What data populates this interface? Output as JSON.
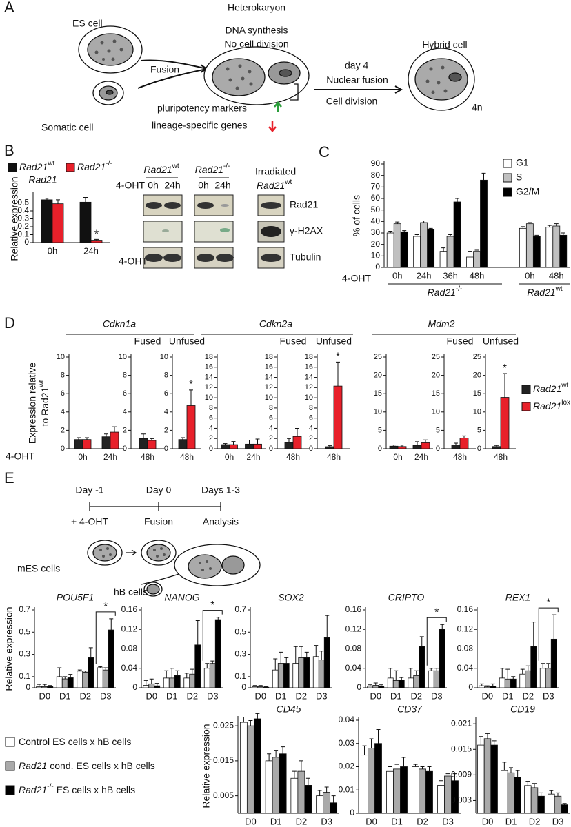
{
  "panel_labels": {
    "a": "A",
    "b": "B",
    "c": "C",
    "d": "D",
    "e": "E"
  },
  "panel_a": {
    "es_cell": "ES cell",
    "somatic_cell": "Somatic cell",
    "fusion": "Fusion",
    "heterokaryon": "Heterokaryon",
    "dna_synthesis": "DNA synthesis",
    "no_division": "No cell division",
    "pluripotency": "pluripotency markers",
    "lineage": "lineage-specific genes",
    "day4": "day 4",
    "nuclear_fusion": "Nuclear fusion",
    "cell_division": "Cell division",
    "hybrid_cell": "Hybrid cell",
    "ploidy": "4n"
  },
  "panel_b": {
    "legend": [
      {
        "base": "Rad21",
        "sup": "wt",
        "color": "#111111"
      },
      {
        "base": "Rad21",
        "sup": "-/-",
        "color": "#e8202a"
      }
    ],
    "blot": {
      "columns": [
        {
          "base": "Rad21",
          "sup": "wt"
        },
        {
          "base": "Rad21",
          "sup": "-/-"
        }
      ],
      "irradiated": "Irradiated",
      "irradiated_line": {
        "base": "Rad21",
        "sup": "wt"
      },
      "treatment": "4-OHT",
      "times": [
        "0h",
        "24h",
        "0h",
        "24h"
      ],
      "rows": [
        "Rad21",
        "γ-H2AX",
        "Tubulin"
      ]
    }
  },
  "panel_c": {
    "groups": [
      {
        "base": "Rad21",
        "sup": "-/-"
      },
      {
        "base": "Rad21",
        "sup": "wt"
      }
    ]
  },
  "panel_d": {
    "genes": [
      "Cdkn1a",
      "Cdkn2a",
      "Mdm2"
    ],
    "ylabel": {
      "line1": "Expression relative",
      "line2": "to Rad21",
      "sup": "wt"
    },
    "treatment": "4-OHT",
    "legend": [
      {
        "base": "Rad21",
        "sup": "wt",
        "color": "#222222"
      },
      {
        "base": "Rad21",
        "sup": "lox",
        "color": "#e8202a"
      }
    ]
  },
  "panel_e": {
    "timeline": {
      "days": [
        "Day -1",
        "Day 0",
        "Days 1-3"
      ],
      "steps": [
        "+ 4-OHT",
        "Fusion",
        "Analysis"
      ]
    },
    "mes": "mES cells",
    "hb": "hB cells",
    "legend": [
      {
        "text": "Control ES cells x hB cells",
        "color": "#ffffff"
      },
      {
        "italic": "Rad21",
        "text": "cond. ES cells x hB cells",
        "color": "#aaaaaa"
      },
      {
        "italic": "Rad21",
        "sup": "-/-",
        "text": "ES cells x hB cells",
        "color": "#000000"
      }
    ]
  },
  "chart_data": [
    {
      "type": "bar",
      "title": "Rad21",
      "ylabel": "Relative expression",
      "xlabel": "4-OHT",
      "categories": [
        "0h",
        "24h"
      ],
      "series": [
        {
          "color": "#111111",
          "values": [
            0.54,
            0.51
          ],
          "errors": [
            0.02,
            0.06
          ]
        },
        {
          "color": "#e8202a",
          "values": [
            0.49,
            0.03
          ],
          "errors": [
            0.05,
            0.01
          ]
        }
      ],
      "ylim": [
        0,
        0.6
      ],
      "yticks": [
        0,
        0.1,
        0.2,
        0.3,
        0.4,
        0.5
      ],
      "annotations": [
        "*"
      ]
    },
    {
      "type": "bar",
      "ylabel": "% of cells",
      "xlabel": "4-OHT",
      "categories": [
        "0h",
        "24h",
        "36h",
        "48h",
        null,
        "0h",
        "48h"
      ],
      "series": [
        {
          "name": "G1",
          "color": "#ffffff",
          "values": [
            30,
            27,
            14,
            9,
            null,
            34,
            35
          ],
          "errors": [
            1.5,
            1.5,
            3,
            5,
            null,
            1.5,
            1.5
          ]
        },
        {
          "name": "S",
          "color": "#c0c0c0",
          "values": [
            38,
            39,
            27,
            14,
            null,
            38,
            36
          ],
          "errors": [
            1.5,
            1.5,
            1.5,
            1,
            null,
            1,
            2
          ]
        },
        {
          "name": "G2/M",
          "color": "#000000",
          "values": [
            31,
            33,
            57,
            76,
            null,
            27,
            28
          ],
          "errors": [
            1,
            1,
            3,
            6,
            null,
            1,
            2
          ]
        }
      ],
      "ylim": [
        0,
        90
      ],
      "yticks": [
        0,
        10,
        20,
        30,
        40,
        50,
        60,
        70,
        80,
        90
      ]
    },
    {
      "type": "bar",
      "categories": [
        "0h",
        "24h"
      ],
      "series": [
        {
          "color": "#222222",
          "values": [
            1.0,
            1.3
          ],
          "errors": [
            0.2,
            0.3
          ]
        },
        {
          "color": "#e8202a",
          "values": [
            1.0,
            1.8
          ],
          "errors": [
            0.2,
            0.6
          ]
        }
      ],
      "ylim": [
        0,
        10
      ],
      "yticks": [
        0,
        2,
        4,
        6,
        8,
        10
      ]
    },
    {
      "type": "bar",
      "title": "Fused",
      "categories": [
        "48h"
      ],
      "series": [
        {
          "color": "#222222",
          "values": [
            1.1
          ],
          "errors": [
            0.5
          ]
        },
        {
          "color": "#e8202a",
          "values": [
            0.9
          ],
          "errors": [
            0.2
          ]
        }
      ],
      "ylim": [
        0,
        10
      ],
      "yticks": [
        0,
        2,
        4,
        6,
        8,
        10
      ]
    },
    {
      "type": "bar",
      "title": "Unfused",
      "categories": [
        "48h"
      ],
      "series": [
        {
          "color": "#222222",
          "values": [
            1.0
          ],
          "errors": [
            0.2
          ]
        },
        {
          "color": "#e8202a",
          "values": [
            4.7
          ],
          "errors": [
            1.7
          ]
        }
      ],
      "ylim": [
        0,
        10
      ],
      "yticks": [
        0,
        2,
        4,
        6,
        8,
        10
      ],
      "annotations": [
        "*"
      ]
    },
    {
      "type": "bar",
      "categories": [
        "0h",
        "24h"
      ],
      "series": [
        {
          "color": "#222222",
          "values": [
            0.8,
            0.9
          ],
          "errors": [
            0.2,
            0.8
          ]
        },
        {
          "color": "#e8202a",
          "values": [
            0.8,
            0.9
          ],
          "errors": [
            0.6,
            1.0
          ]
        }
      ],
      "ylim": [
        0,
        18
      ],
      "yticks": [
        0,
        2,
        4,
        6,
        8,
        10,
        12,
        14,
        16,
        18
      ]
    },
    {
      "type": "bar",
      "title": "Fused",
      "categories": [
        "48h"
      ],
      "series": [
        {
          "color": "#222222",
          "values": [
            1.2
          ],
          "errors": [
            0.8
          ]
        },
        {
          "color": "#e8202a",
          "values": [
            2.4
          ],
          "errors": [
            1.6
          ]
        }
      ],
      "ylim": [
        0,
        18
      ],
      "yticks": [
        0,
        2,
        4,
        6,
        8,
        10,
        12,
        14,
        16,
        18
      ]
    },
    {
      "type": "bar",
      "title": "Unfused",
      "categories": [
        "48h"
      ],
      "series": [
        {
          "color": "#222222",
          "values": [
            0.4
          ],
          "errors": [
            0.2
          ]
        },
        {
          "color": "#e8202a",
          "values": [
            12.3
          ],
          "errors": [
            4.7
          ]
        }
      ],
      "ylim": [
        0,
        18
      ],
      "yticks": [
        0,
        2,
        4,
        6,
        8,
        10,
        12,
        14,
        16,
        18
      ],
      "annotations": [
        "*"
      ]
    },
    {
      "type": "bar",
      "categories": [
        "0h",
        "24h"
      ],
      "series": [
        {
          "color": "#222222",
          "values": [
            0.7,
            0.9
          ],
          "errors": [
            0.3,
            1.0
          ]
        },
        {
          "color": "#e8202a",
          "values": [
            0.6,
            1.6
          ],
          "errors": [
            0.4,
            0.8
          ]
        }
      ],
      "ylim": [
        0,
        25
      ],
      "yticks": [
        0,
        5,
        10,
        15,
        20,
        25
      ]
    },
    {
      "type": "bar",
      "title": "Fused",
      "categories": [
        "48h"
      ],
      "series": [
        {
          "color": "#222222",
          "values": [
            1.0
          ],
          "errors": [
            0.5
          ]
        },
        {
          "color": "#e8202a",
          "values": [
            2.9
          ],
          "errors": [
            0.6
          ]
        }
      ],
      "ylim": [
        0,
        25
      ],
      "yticks": [
        0,
        5,
        10,
        15,
        20,
        25
      ]
    },
    {
      "type": "bar",
      "title": "Unfused",
      "categories": [
        "48h"
      ],
      "series": [
        {
          "color": "#222222",
          "values": [
            0.6
          ],
          "errors": [
            0.3
          ]
        },
        {
          "color": "#e8202a",
          "values": [
            14
          ],
          "errors": [
            6.5
          ]
        }
      ],
      "ylim": [
        0,
        25
      ],
      "yticks": [
        0,
        5,
        10,
        15,
        20,
        25
      ],
      "annotations": [
        "*"
      ]
    },
    {
      "type": "bar",
      "title": "POU5F1",
      "ylabel": "Relative expression",
      "categories": [
        "D0",
        "D1",
        "D2",
        "D3"
      ],
      "series": [
        {
          "color": "#ffffff",
          "values": [
            0.01,
            0.1,
            0.15,
            0.18
          ],
          "errors": [
            0.02,
            0.08,
            0.01,
            0.01
          ]
        },
        {
          "color": "#aaaaaa",
          "values": [
            0.01,
            0.08,
            0.14,
            0.16
          ],
          "errors": [
            0.02,
            0.02,
            0.01,
            0.02
          ]
        },
        {
          "color": "#000000",
          "values": [
            0.01,
            0.09,
            0.27,
            0.52
          ],
          "errors": [
            0.01,
            0.03,
            0.09,
            0.1
          ]
        }
      ],
      "ylim": [
        0,
        0.7
      ],
      "yticks": [
        0,
        0.1,
        0.3,
        0.5,
        0.7
      ],
      "annotations": [
        "*"
      ]
    },
    {
      "type": "bar",
      "title": "NANOG",
      "categories": [
        "D0",
        "D1",
        "D2",
        "D3"
      ],
      "series": [
        {
          "color": "#ffffff",
          "values": [
            0.005,
            0.02,
            0.02,
            0.04
          ],
          "errors": [
            0.01,
            0.015,
            0.01,
            0.01
          ]
        },
        {
          "color": "#aaaaaa",
          "values": [
            0.008,
            0.02,
            0.028,
            0.05
          ],
          "errors": [
            0.01,
            0.02,
            0.01,
            0.005
          ]
        },
        {
          "color": "#000000",
          "values": [
            0.004,
            0.025,
            0.088,
            0.14
          ],
          "errors": [
            0.005,
            0.01,
            0.05,
            0.005
          ]
        }
      ],
      "ylim": [
        0,
        0.16
      ],
      "yticks": [
        0,
        0.04,
        0.08,
        0.12,
        0.16
      ],
      "annotations": [
        "*"
      ]
    },
    {
      "type": "bar",
      "title": "SOX2",
      "categories": [
        "D0",
        "D1",
        "D2",
        "D3"
      ],
      "series": [
        {
          "color": "#ffffff",
          "values": [
            0.01,
            0.16,
            0.22,
            0.28
          ],
          "errors": [
            0.01,
            0.1,
            0.15,
            0.1
          ]
        },
        {
          "color": "#aaaaaa",
          "values": [
            0.01,
            0.22,
            0.27,
            0.25
          ],
          "errors": [
            0.01,
            0.1,
            0.1,
            0.08
          ]
        },
        {
          "color": "#000000",
          "values": [
            0.005,
            0.22,
            0.27,
            0.45
          ],
          "errors": [
            0.005,
            0.05,
            0.05,
            0.2
          ]
        }
      ],
      "ylim": [
        0,
        0.7
      ],
      "yticks": [
        0,
        0.1,
        0.3,
        0.5,
        0.7
      ]
    },
    {
      "type": "bar",
      "title": "CRIPTO",
      "categories": [
        "D0",
        "D1",
        "D2",
        "D3"
      ],
      "series": [
        {
          "color": "#ffffff",
          "values": [
            0.003,
            0.02,
            0.02,
            0.035
          ],
          "errors": [
            0.003,
            0.02,
            0.02,
            0.005
          ]
        },
        {
          "color": "#aaaaaa",
          "values": [
            0.005,
            0.015,
            0.025,
            0.035
          ],
          "errors": [
            0.005,
            0.02,
            0.01,
            0.005
          ]
        },
        {
          "color": "#000000",
          "values": [
            0.003,
            0.016,
            0.085,
            0.12
          ],
          "errors": [
            0.003,
            0.005,
            0.02,
            0.01
          ]
        }
      ],
      "ylim": [
        0,
        0.16
      ],
      "yticks": [
        0,
        0.04,
        0.08,
        0.12,
        0.16
      ],
      "annotations": [
        "*"
      ]
    },
    {
      "type": "bar",
      "title": "REX1",
      "categories": [
        "D0",
        "D1",
        "D2",
        "D3"
      ],
      "series": [
        {
          "color": "#ffffff",
          "values": [
            0.004,
            0.02,
            0.028,
            0.04
          ],
          "errors": [
            0.004,
            0.02,
            0.01,
            0.01
          ]
        },
        {
          "color": "#aaaaaa",
          "values": [
            0.002,
            0.018,
            0.035,
            0.04
          ],
          "errors": [
            0.002,
            0.02,
            0.01,
            0.01
          ]
        },
        {
          "color": "#000000",
          "values": [
            0.003,
            0.018,
            0.085,
            0.1
          ],
          "errors": [
            0.005,
            0.005,
            0.05,
            0.05
          ]
        }
      ],
      "ylim": [
        0,
        0.16
      ],
      "yticks": [
        0,
        0.04,
        0.08,
        0.12,
        0.16
      ],
      "annotations": [
        "*"
      ]
    },
    {
      "type": "bar",
      "title": "CD45",
      "ylabel": "Relative expression",
      "categories": [
        "D0",
        "D1",
        "D2",
        "D3"
      ],
      "series": [
        {
          "color": "#ffffff",
          "values": [
            0.026,
            0.015,
            0.01,
            0.005
          ],
          "errors": [
            0.0015,
            0.002,
            0.002,
            0.0015
          ]
        },
        {
          "color": "#aaaaaa",
          "values": [
            0.025,
            0.016,
            0.012,
            0.006
          ],
          "errors": [
            0.0015,
            0.002,
            0.003,
            0.0015
          ]
        },
        {
          "color": "#000000",
          "values": [
            0.027,
            0.017,
            0.008,
            0.003
          ],
          "errors": [
            0.0015,
            0.002,
            0.002,
            0.002
          ]
        }
      ],
      "ylim": [
        0,
        0.027
      ],
      "yticks": [
        0.005,
        0.015,
        0.025
      ]
    },
    {
      "type": "bar",
      "title": "CD37",
      "categories": [
        "D0",
        "D1",
        "D2",
        "D3"
      ],
      "series": [
        {
          "color": "#ffffff",
          "values": [
            0.025,
            0.018,
            0.02,
            0.012
          ],
          "errors": [
            0.004,
            0.002,
            0.001,
            0.002
          ]
        },
        {
          "color": "#aaaaaa",
          "values": [
            0.028,
            0.019,
            0.019,
            0.016
          ],
          "errors": [
            0.004,
            0.002,
            0.001,
            0.001
          ]
        },
        {
          "color": "#000000",
          "values": [
            0.03,
            0.02,
            0.018,
            0.014
          ],
          "errors": [
            0.006,
            0.004,
            0.002,
            0.003
          ]
        }
      ],
      "ylim": [
        0,
        0.04
      ],
      "yticks": [
        0,
        0.01,
        0.02,
        0.03,
        0.04
      ]
    },
    {
      "type": "bar",
      "title": "CD19",
      "categories": [
        "D0",
        "D1",
        "D2",
        "D3"
      ],
      "series": [
        {
          "color": "#ffffff",
          "values": [
            0.016,
            0.01,
            0.0065,
            0.0045
          ],
          "errors": [
            0.002,
            0.002,
            0.001,
            0.0008
          ]
        },
        {
          "color": "#aaaaaa",
          "values": [
            0.0175,
            0.0095,
            0.006,
            0.004
          ],
          "errors": [
            0.0012,
            0.0012,
            0.001,
            0.0008
          ]
        },
        {
          "color": "#000000",
          "values": [
            0.016,
            0.0085,
            0.004,
            0.002
          ],
          "errors": [
            0.001,
            0.0015,
            0.0008,
            0.0003
          ]
        }
      ],
      "ylim": [
        0,
        0.022
      ],
      "yticks": [
        0.003,
        0.009,
        0.015,
        0.021
      ]
    }
  ]
}
